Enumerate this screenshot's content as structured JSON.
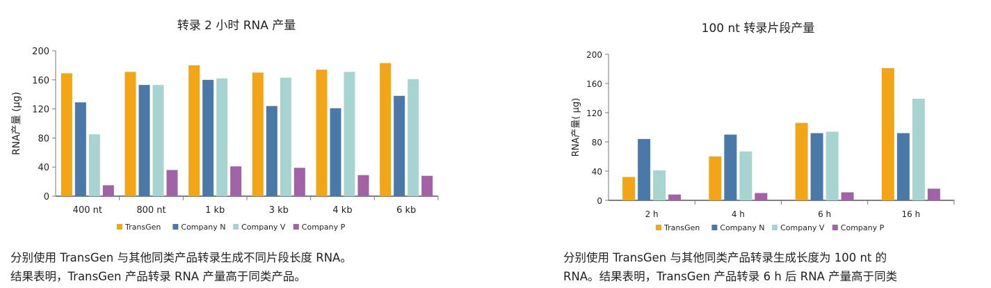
{
  "colors": {
    "TransGen": "#F2A516",
    "Company N": "#4A78A8",
    "Company V": "#A7D4D1",
    "Company P": "#A262A6"
  },
  "chart_data": [
    {
      "type": "bar",
      "title": "转录 2 小时 RNA 产量",
      "xlabel": "",
      "ylabel": "RNA产量 (μg)",
      "ylim": [
        0,
        200
      ],
      "yticks": [
        0,
        40,
        80,
        120,
        160,
        200
      ],
      "grid": false,
      "legend": "bottom",
      "categories": [
        "400 nt",
        "800 nt",
        "1 kb",
        "3 kb",
        "4 kb",
        "6 kb"
      ],
      "series": [
        {
          "name": "TransGen",
          "values": [
            169,
            171,
            180,
            170,
            174,
            183
          ]
        },
        {
          "name": "Company N",
          "values": [
            129,
            153,
            160,
            124,
            121,
            138
          ]
        },
        {
          "name": "Company V",
          "values": [
            85,
            153,
            162,
            163,
            171,
            161
          ]
        },
        {
          "name": "Company P",
          "values": [
            15,
            36,
            41,
            39,
            29,
            28
          ]
        }
      ]
    },
    {
      "type": "bar",
      "title": "100 nt 转录片段产量",
      "xlabel": "",
      "ylabel": "RNA产量( μg)",
      "ylim": [
        0,
        200
      ],
      "yticks": [
        0,
        40,
        80,
        120,
        160,
        200
      ],
      "grid": false,
      "legend": "bottom",
      "categories": [
        "2 h",
        "4 h",
        "6 h",
        "16 h"
      ],
      "series": [
        {
          "name": "TransGen",
          "values": [
            32,
            60,
            106,
            181
          ]
        },
        {
          "name": "Company N",
          "values": [
            84,
            90,
            92,
            92
          ]
        },
        {
          "name": "Company V",
          "values": [
            41,
            67,
            94,
            139
          ]
        },
        {
          "name": "Company P",
          "values": [
            8,
            10,
            11,
            16
          ]
        }
      ]
    }
  ],
  "captions": [
    [
      "分别使用 TransGen 与其他同类产品转录生成不同片段长度 RNA。",
      "结果表明，TransGen 产品转录 RNA 产量高于同类产品。"
    ],
    [
      "分别使用 TransGen 与其他同类产品转录生成长度为 100 nt 的",
      "RNA。结果表明，TransGen 产品转录 6 h 后 RNA 产量高于同类"
    ]
  ]
}
